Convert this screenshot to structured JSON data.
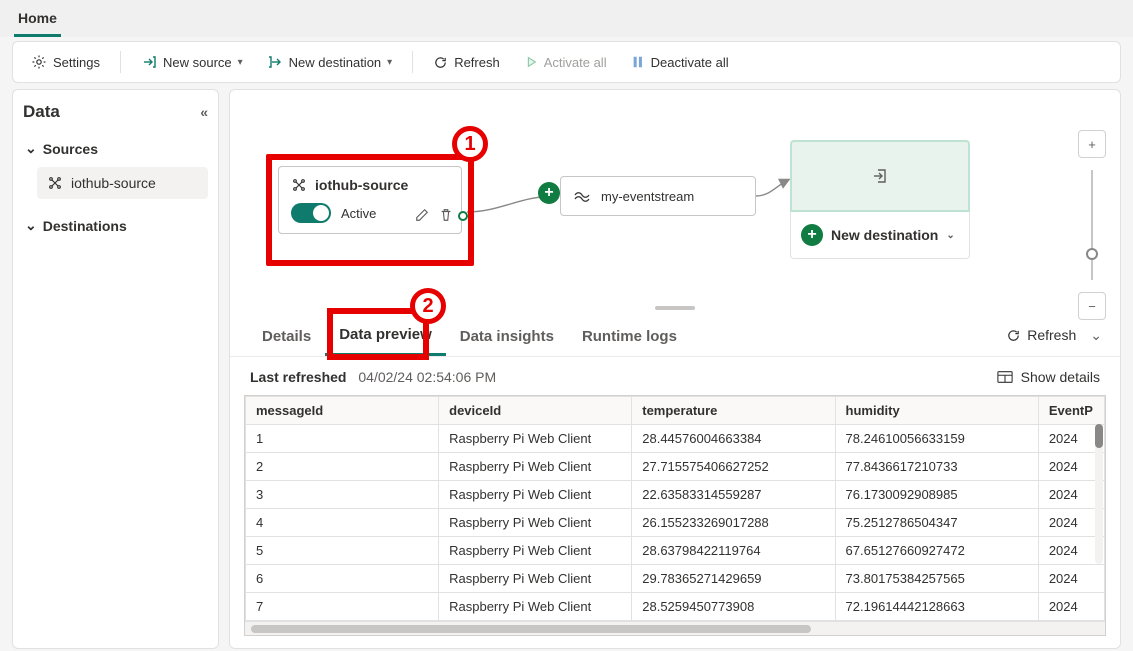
{
  "topTab": "Home",
  "toolbar": {
    "settings": "Settings",
    "newSource": "New source",
    "newDestination": "New destination",
    "refresh": "Refresh",
    "activateAll": "Activate all",
    "deactivateAll": "Deactivate all"
  },
  "sidebar": {
    "title": "Data",
    "groups": {
      "sources": "Sources",
      "destinations": "Destinations"
    },
    "sourceItem": "iothub-source"
  },
  "canvas": {
    "sourceNode": {
      "title": "iothub-source",
      "status": "Active"
    },
    "streamNode": "my-eventstream",
    "newDestination": "New destination"
  },
  "callouts": {
    "one": "1",
    "two": "2"
  },
  "bottomTabs": {
    "details": "Details",
    "dataPreview": "Data preview",
    "dataInsights": "Data insights",
    "runtimeLogs": "Runtime logs",
    "refresh": "Refresh"
  },
  "meta": {
    "lastRefreshedLabel": "Last refreshed",
    "lastRefreshedValue": "04/02/24 02:54:06 PM",
    "showDetails": "Show details"
  },
  "table": {
    "headers": {
      "messageId": "messageId",
      "deviceId": "deviceId",
      "temperature": "temperature",
      "humidity": "humidity",
      "event": "EventP"
    },
    "rows": [
      {
        "id": "1",
        "device": "Raspberry Pi Web Client",
        "temp": "28.44576004663384",
        "hum": "78.24610056633159",
        "evt": "2024"
      },
      {
        "id": "2",
        "device": "Raspberry Pi Web Client",
        "temp": "27.715575406627252",
        "hum": "77.8436617210733",
        "evt": "2024"
      },
      {
        "id": "3",
        "device": "Raspberry Pi Web Client",
        "temp": "22.63583314559287",
        "hum": "76.1730092908985",
        "evt": "2024"
      },
      {
        "id": "4",
        "device": "Raspberry Pi Web Client",
        "temp": "26.155233269017288",
        "hum": "75.2512786504347",
        "evt": "2024"
      },
      {
        "id": "5",
        "device": "Raspberry Pi Web Client",
        "temp": "28.63798422119764",
        "hum": "67.65127660927472",
        "evt": "2024"
      },
      {
        "id": "6",
        "device": "Raspberry Pi Web Client",
        "temp": "29.78365271429659",
        "hum": "73.80175384257565",
        "evt": "2024"
      },
      {
        "id": "7",
        "device": "Raspberry Pi Web Client",
        "temp": "28.5259450773908",
        "hum": "72.19614442128663",
        "evt": "2024"
      }
    ]
  },
  "colors": {
    "accent": "#0f7b6c",
    "highlight": "#e60000",
    "plusGreen": "#107c41"
  }
}
